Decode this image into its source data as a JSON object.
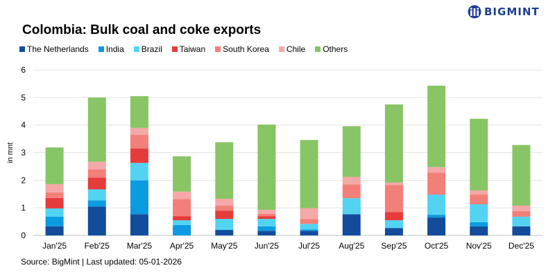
{
  "brand": {
    "name": "BIGMINT"
  },
  "source_note": "Source: BigMint | Last updated: 05-01-2026",
  "chart_data": {
    "type": "bar",
    "stacked": true,
    "title": "Colombia: Bulk coal and coke exports",
    "xlabel": "",
    "ylabel": "in mnt",
    "ylim": [
      0,
      6
    ],
    "yticks": [
      0,
      1,
      2,
      3,
      4,
      5,
      6
    ],
    "gridlines": true,
    "legend_position": "top-left",
    "categories": [
      "Jan'25",
      "Feb'25",
      "Mar'25",
      "Apr'25",
      "May'25",
      "Jun'25",
      "Jul'25",
      "Aug'25",
      "Sep'25",
      "Oct'25",
      "Nov'25",
      "Dec'25"
    ],
    "series": [
      {
        "name": "The Netherlands",
        "color": "#124c9b",
        "values": [
          0.33,
          1.05,
          0.77,
          0.0,
          0.2,
          0.17,
          0.17,
          0.77,
          0.27,
          0.65,
          0.33,
          0.33
        ]
      },
      {
        "name": "India",
        "color": "#0c9be0",
        "values": [
          0.35,
          0.22,
          1.23,
          0.38,
          0.0,
          0.16,
          0.05,
          0.0,
          0.0,
          0.1,
          0.15,
          0.0
        ]
      },
      {
        "name": "Brazil",
        "color": "#52d3f2",
        "values": [
          0.3,
          0.4,
          0.63,
          0.17,
          0.4,
          0.27,
          0.2,
          0.58,
          0.28,
          0.73,
          0.65,
          0.35
        ]
      },
      {
        "name": "Taiwan",
        "color": "#e63b3b",
        "values": [
          0.38,
          0.43,
          0.52,
          0.15,
          0.3,
          0.1,
          0.0,
          0.0,
          0.3,
          0.0,
          0.0,
          0.0
        ]
      },
      {
        "name": "South Korea",
        "color": "#f28078",
        "values": [
          0.2,
          0.3,
          0.5,
          0.62,
          0.18,
          0.08,
          0.17,
          0.5,
          0.97,
          0.8,
          0.35,
          0.2
        ]
      },
      {
        "name": "Chile",
        "color": "#f5a8a8",
        "values": [
          0.3,
          0.27,
          0.25,
          0.27,
          0.25,
          0.15,
          0.4,
          0.27,
          0.1,
          0.2,
          0.15,
          0.2
        ]
      },
      {
        "name": "Others",
        "color": "#88c565",
        "values": [
          1.33,
          2.33,
          1.15,
          1.28,
          2.05,
          3.09,
          2.47,
          1.84,
          2.83,
          2.95,
          2.6,
          2.2
        ]
      }
    ]
  }
}
